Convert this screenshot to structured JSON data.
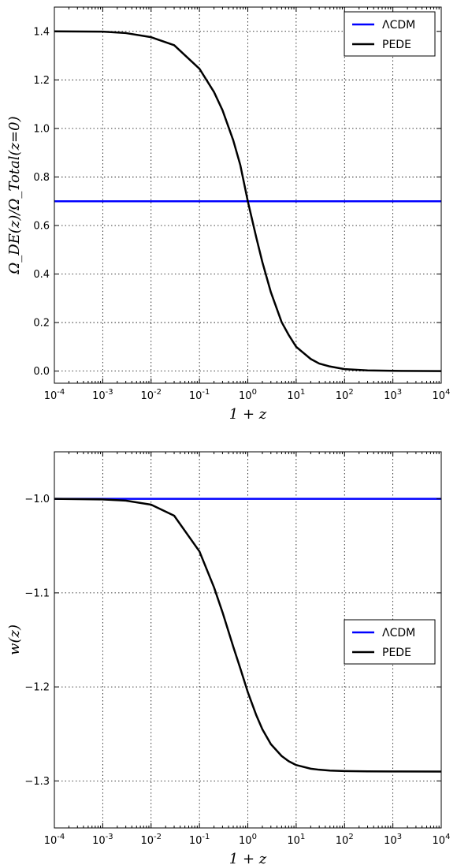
{
  "chart_data": [
    {
      "type": "line",
      "xlabel": "1 + z",
      "ylabel": "Ω_DE(z)/Ω_Total(z=0)",
      "xscale": "log",
      "xlim": [
        0.0001,
        10000
      ],
      "ylim": [
        -0.05,
        1.5
      ],
      "x_ticks": [
        "10-4",
        "10-3",
        "10-2",
        "10-1",
        "100",
        "101",
        "102",
        "103",
        "104"
      ],
      "y_ticks": [
        "0.0",
        "0.2",
        "0.4",
        "0.6",
        "0.8",
        "1.0",
        "1.2",
        "1.4"
      ],
      "grid": true,
      "legend_position": "top-right",
      "series": [
        {
          "name": "ΛCDM",
          "color": "#0000ff",
          "x": [
            0.0001,
            10000
          ],
          "y": [
            0.7,
            0.7
          ]
        },
        {
          "name": "PEDE",
          "color": "#000000",
          "x": [
            0.0001,
            0.001,
            0.003,
            0.01,
            0.03,
            0.1,
            0.2,
            0.3,
            0.5,
            0.7,
            1,
            1.5,
            2,
            3,
            5,
            7,
            10,
            20,
            30,
            50,
            100,
            300,
            1000,
            10000
          ],
          "y": [
            1.4,
            1.399,
            1.393,
            1.376,
            1.343,
            1.246,
            1.15,
            1.075,
            0.951,
            0.849,
            0.7,
            0.55,
            0.449,
            0.325,
            0.202,
            0.149,
            0.1,
            0.05,
            0.031,
            0.019,
            0.008,
            0.003,
            0.001,
            0.0
          ]
        }
      ]
    },
    {
      "type": "line",
      "xlabel": "1 + z",
      "ylabel": "w(z)",
      "xscale": "log",
      "xlim": [
        0.0001,
        10000
      ],
      "ylim": [
        -1.35,
        -0.95
      ],
      "x_ticks": [
        "10-4",
        "10-3",
        "10-2",
        "10-1",
        "100",
        "101",
        "102",
        "103",
        "104"
      ],
      "y_ticks": [
        "−1.0",
        "−1.1",
        "−1.2",
        "−1.3"
      ],
      "grid": true,
      "legend_position": "center-right",
      "series": [
        {
          "name": "ΛCDM",
          "color": "#0000ff",
          "x": [
            0.0001,
            10000
          ],
          "y": [
            -1.0,
            -1.0
          ]
        },
        {
          "name": "PEDE",
          "color": "#000000",
          "x": [
            0.0001,
            0.001,
            0.003,
            0.01,
            0.03,
            0.1,
            0.2,
            0.3,
            0.5,
            0.7,
            1,
            1.5,
            2,
            3,
            5,
            7,
            10,
            20,
            30,
            50,
            100,
            300,
            1000,
            10000
          ],
          "y": [
            -1.0,
            -1.0006,
            -1.0019,
            -1.0062,
            -1.0179,
            -1.0559,
            -1.0941,
            -1.1207,
            -1.1572,
            -1.1803,
            -1.2056,
            -1.2302,
            -1.2451,
            -1.2609,
            -1.2735,
            -1.279,
            -1.2831,
            -1.287,
            -1.2881,
            -1.289,
            -1.2895,
            -1.2898,
            -1.2899,
            -1.29
          ]
        }
      ]
    }
  ]
}
